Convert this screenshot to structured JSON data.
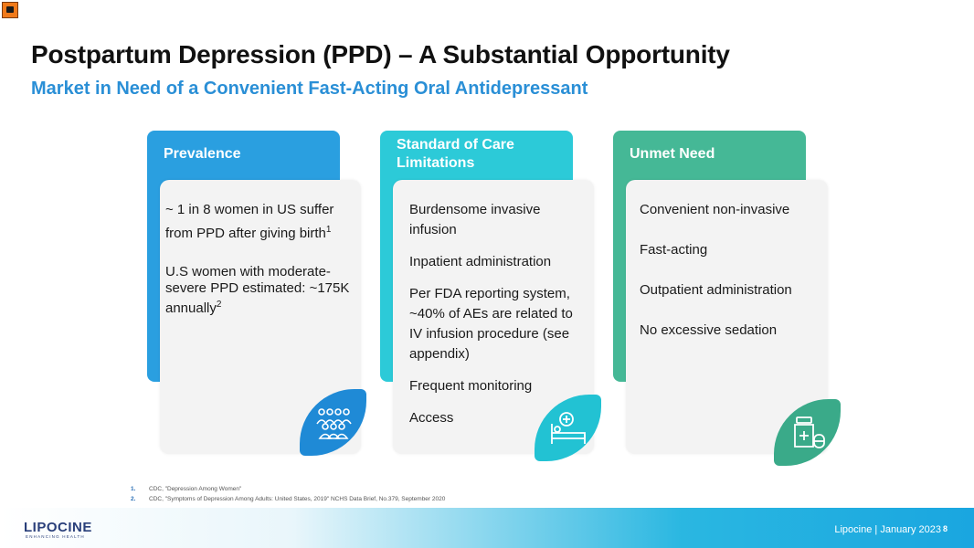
{
  "header": {
    "title": "Postpartum Depression (PPD) – A Substantial Opportunity",
    "subtitle": "Market in Need of a Convenient Fast-Acting Oral Antidepressant"
  },
  "columns": [
    {
      "heading": "Prevalence",
      "icon": "people-group-icon",
      "color": "#2a9fe0",
      "items": [
        {
          "text": "~ 1 in 8 women in US suffer from PPD after giving birth",
          "sup": "1"
        },
        {
          "text": "U.S women with moderate-severe PPD estimated:  ~175K annually",
          "sup": "2"
        }
      ]
    },
    {
      "heading": "Standard of Care Limitations",
      "icon": "hospital-bed-icon",
      "color": "#2ccad8",
      "items": [
        "Burdensome invasive infusion",
        "Inpatient administration",
        "Per FDA reporting system, ~40% of AEs are related to IV infusion procedure (see appendix)",
        "Frequent monitoring",
        "Access"
      ]
    },
    {
      "heading": "Unmet Need",
      "icon": "medicine-bottle-icon",
      "color": "#45b896",
      "items": [
        "Convenient  non-invasive",
        "Fast-acting",
        "Outpatient administration",
        "No excessive sedation"
      ]
    }
  ],
  "footnotes": [
    {
      "num": "1.",
      "text": "CDC, \"Depression Among Women\""
    },
    {
      "num": "2.",
      "text": "CDC, \"Symptoms of Depression Among Adults: United States, 2019\" NCHS Data Brief, No.379, September 2020"
    }
  ],
  "footer": {
    "brand": "LIPOCINE",
    "tagline": "ENHANCING HEALTH",
    "company": "Lipocine",
    "separator": "|",
    "date": "January 2023",
    "page": "8"
  }
}
